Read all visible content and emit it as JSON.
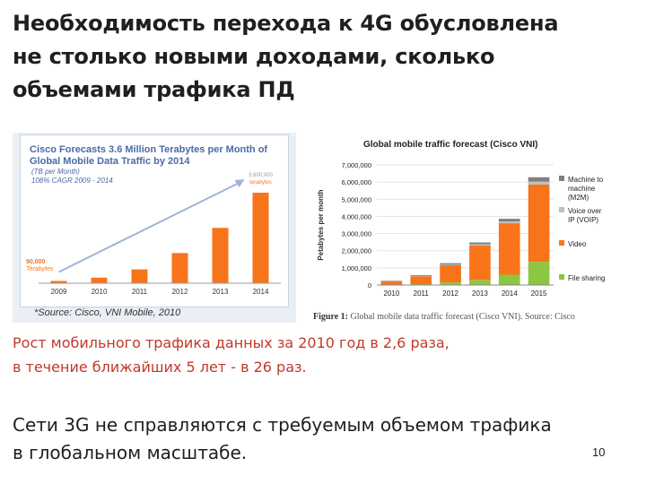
{
  "slide": {
    "title_lines": [
      "Необходимость перехода к 4G обусловлена",
      "не столько новыми доходами, сколько",
      "объемами  трафика ПД"
    ],
    "caption1_lines": [
      "Рост мобильного трафика данных за 2010 год в 2,6 раза,",
      "в течение ближайших 5 лет - в 26 раз."
    ],
    "caption2_lines": [
      "Сети 3G не справляются с требуемым объемом трафика",
      "в глобальном масштабе."
    ],
    "page_number": "10",
    "left_source": "*Source: Cisco, VNI Mobile, 2010",
    "figure_caption_label": "Figure 1:",
    "figure_caption_text": "Global mobile data traffic forecast (Cisco VNI). Source: Cisco"
  },
  "colors": {
    "machine": "#7f7f7f",
    "voip": "#bfbfbf",
    "video": "#f7741b",
    "filesharing": "#8dc63f",
    "left_bars": "#f7741b",
    "title_blue": "#4a6aa8",
    "caption_red": "#c0392b"
  },
  "chart_data": [
    {
      "type": "bar",
      "title": "Cisco Forecasts 3.6 Million Terabytes per Month of Global Mobile Data Traffic by 2014",
      "subtitle_lines": [
        "(TB per Month)",
        "108% CAGR 2009 - 2014"
      ],
      "categories": [
        "2009",
        "2010",
        "2011",
        "2012",
        "2013",
        "2014"
      ],
      "values": [
        90000,
        220000,
        550000,
        1200000,
        2200000,
        3600000
      ],
      "annotations": {
        "first": "90,000 Terabytes",
        "last": "3,600,000 terabytes"
      },
      "grid": false
    },
    {
      "type": "bar",
      "stacked": true,
      "title": "Global mobile traffic forecast (Cisco VNI)",
      "ylabel": "Petabytes per month",
      "ylim": [
        0,
        7000000
      ],
      "yticks": [
        "0",
        "1,000,000",
        "2,000,000",
        "3,000,000",
        "4,000,000",
        "5,000,000",
        "6,000,000",
        "7,000,000"
      ],
      "categories": [
        "2010",
        "2011",
        "2012",
        "2013",
        "2014",
        "2015"
      ],
      "legend_position": "right",
      "series": [
        {
          "name": "File sharing",
          "color_key": "filesharing",
          "values": [
            20000,
            50000,
            150000,
            300000,
            600000,
            1350000
          ]
        },
        {
          "name": "Video",
          "color_key": "video",
          "values": [
            200000,
            460000,
            1000000,
            2000000,
            3000000,
            4500000
          ]
        },
        {
          "name": "Voice over IP (VOIP)",
          "color_key": "voip",
          "values": [
            10000,
            20000,
            40000,
            80000,
            110000,
            180000
          ]
        },
        {
          "name": "Machine to machine (M2M)",
          "color_key": "machine",
          "values": [
            20000,
            50000,
            80000,
            100000,
            150000,
            250000
          ]
        }
      ]
    }
  ]
}
